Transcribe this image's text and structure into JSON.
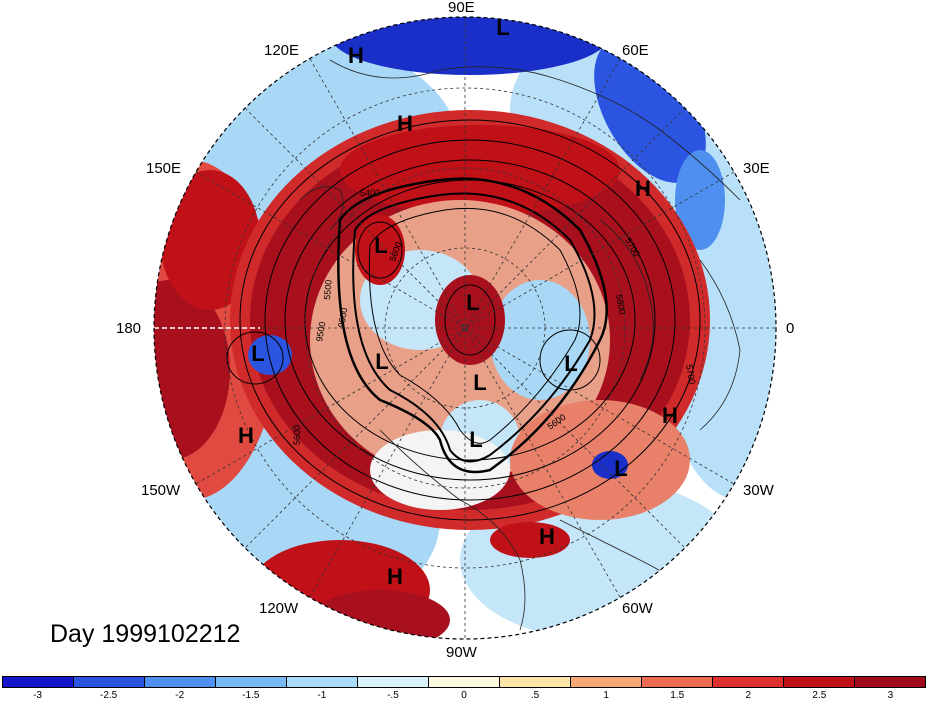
{
  "day_label": "Day 1999102212",
  "longitude_labels": [
    "90E",
    "60E",
    "30E",
    "0",
    "30W",
    "60W",
    "90W",
    "120W",
    "150W",
    "180",
    "150E",
    "120E"
  ],
  "pressure_systems": [
    "L",
    "H",
    "H",
    "H",
    "L",
    "L",
    "L",
    "L",
    "L",
    "L",
    "L",
    "H",
    "L",
    "H",
    "H",
    "H"
  ],
  "contour_labels": [
    "5400",
    "5700",
    "5800",
    "5600",
    "5500",
    "9500",
    "9500",
    "5600",
    "5600",
    "5700"
  ],
  "colorbar": {
    "ticks": [
      "-3",
      "-2.5",
      "-2",
      "-1.5",
      "-1",
      "-.5",
      "0",
      ".5",
      "1",
      "1.5",
      "2",
      "2.5",
      "3"
    ],
    "colors": [
      "#1515cc",
      "#2b55e0",
      "#4f8ff0",
      "#78b8f5",
      "#a8dcfa",
      "#d8f2fc",
      "#fdf8e0",
      "#fbe4a8",
      "#f6a878",
      "#ee6a50",
      "#e03030",
      "#c01018",
      "#a00a1c"
    ]
  },
  "colors": {
    "strong_negative": "#1a2fc8",
    "negative": "#6aa8ee",
    "weak_negative": "#c4e6f8",
    "neutral": "#ffffff",
    "weak_positive": "#f8c8a0",
    "positive": "#e04a40",
    "strong_positive": "#a8101e"
  }
}
